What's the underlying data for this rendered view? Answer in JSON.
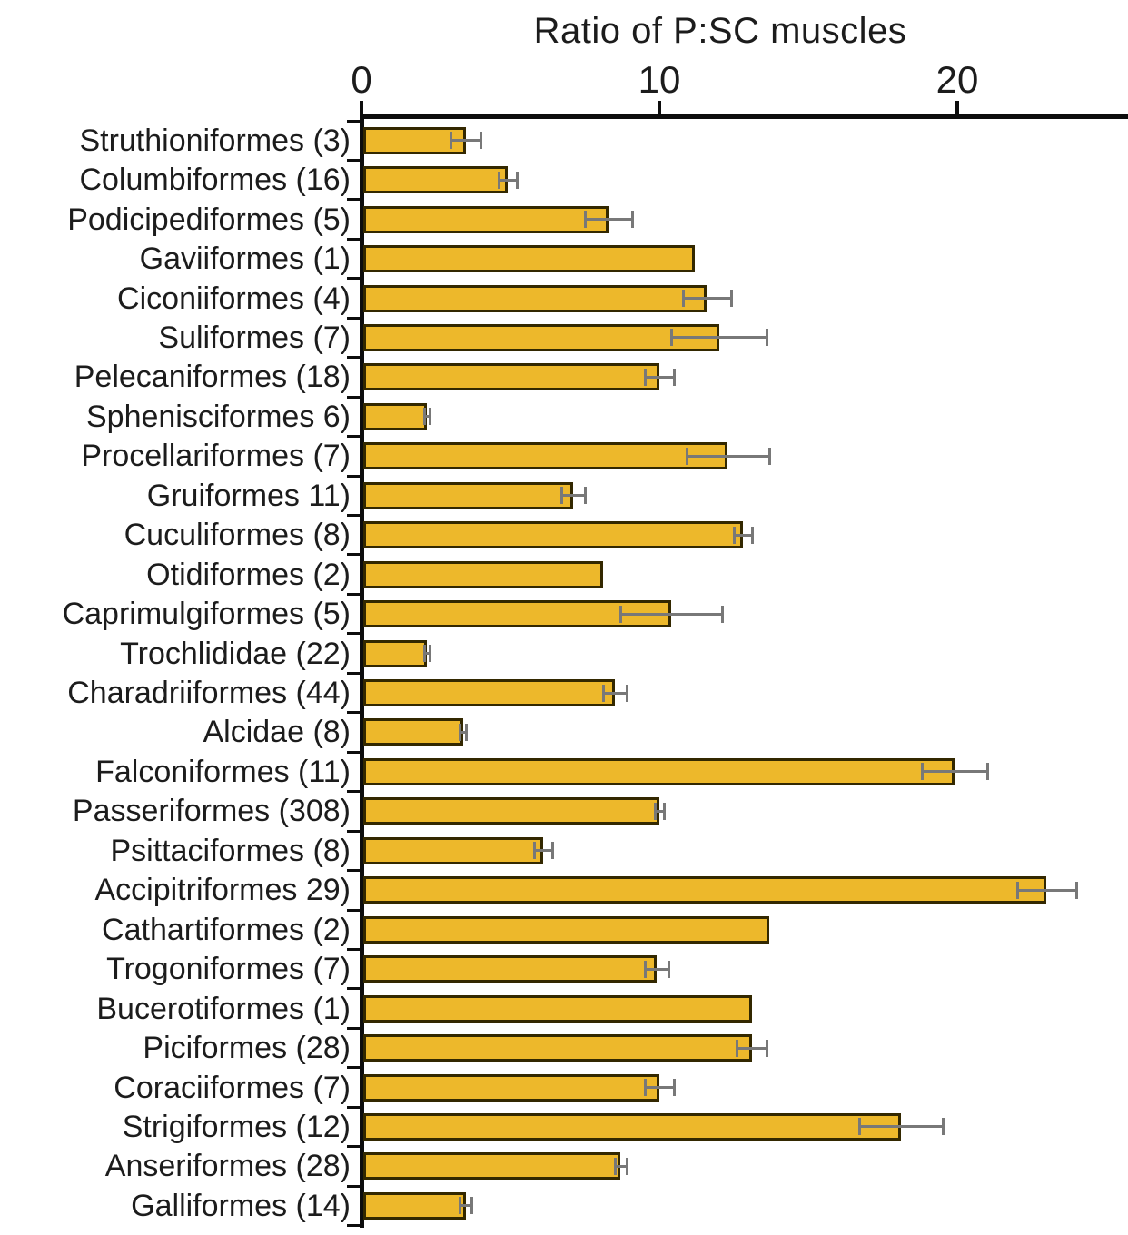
{
  "chart_data": {
    "type": "bar",
    "orientation": "horizontal",
    "title": "Ratio of P:SC muscles",
    "xlabel": "Ratio of P:SC muscles",
    "ylabel": "",
    "xlim": [
      0,
      25.7
    ],
    "xticks": [
      0,
      10,
      20
    ],
    "grid": false,
    "legend": "none",
    "bar_color": "#EDB82B",
    "bar_border_color": "#332800",
    "error_bar_color": "#787878",
    "categories": [
      "Struthioniformes (3)",
      "Columbiformes (16)",
      "Podicipediformes (5)",
      "Gaviiformes (1)",
      "Ciconiiformes (4)",
      "Suliformes (7)",
      "Pelecaniformes (18)",
      "Sphenisciformes 6)",
      "Procellariformes (7)",
      "Gruiformes 11)",
      "Cuculiformes (8)",
      "Otidiformes (2)",
      "Caprimulgiformes (5)",
      "Trochlididae (22)",
      "Charadriiformes (44)",
      "Alcidae (8)",
      "Falconiformes (11)",
      "Passeriformes (308)",
      "Psittaciformes (8)",
      "Accipitriformes 29)",
      "Cathartiformes (2)",
      "Trogoniformes (7)",
      "Bucerotiformes (1)",
      "Piciformes (28)",
      "Coraciiformes (7)",
      "Strigiformes (12)",
      "Anseriformes (28)",
      "Galliformes (14)"
    ],
    "values": [
      3.5,
      4.9,
      8.3,
      11.2,
      11.6,
      12.0,
      10.0,
      2.2,
      12.3,
      7.1,
      12.8,
      8.1,
      10.4,
      2.2,
      8.5,
      3.4,
      19.9,
      10.0,
      6.1,
      23.0,
      13.7,
      9.9,
      13.1,
      13.1,
      10.0,
      18.1,
      8.7,
      3.5
    ],
    "errors": [
      0.5,
      0.3,
      0.8,
      null,
      0.8,
      1.6,
      0.5,
      0.1,
      1.4,
      0.4,
      0.3,
      null,
      1.7,
      0.1,
      0.4,
      0.1,
      1.1,
      0.15,
      0.3,
      1.0,
      null,
      0.4,
      null,
      0.5,
      0.5,
      1.4,
      0.2,
      0.2
    ]
  }
}
